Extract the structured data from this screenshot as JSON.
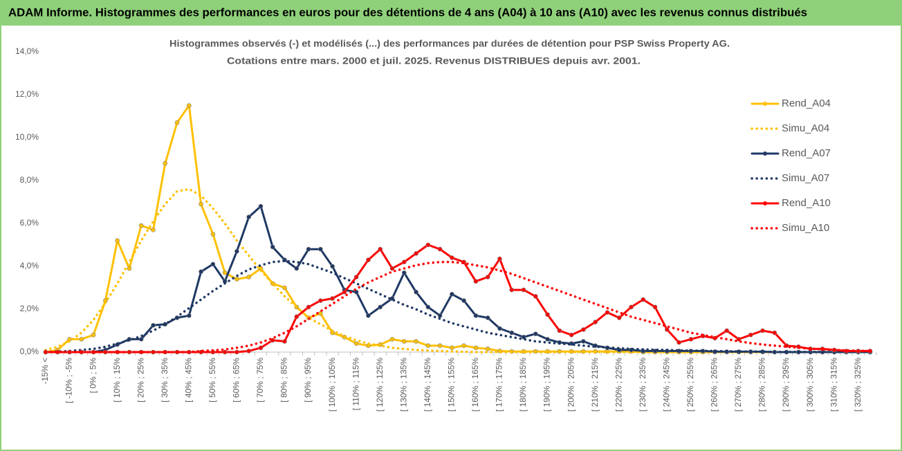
{
  "header": {
    "title": "ADAM Informe. Histogrammes des performances en euros pour des détentions de 4 ans (A04) à 10 ans (A10) avec les revenus connus distribués"
  },
  "chart_data": {
    "type": "line",
    "title": "Histogrammes observés (-) et modélisés (...) des performances par durées de détention pour PSP Swiss Property AG.",
    "subtitle": "Cotations entre mars. 2000 et juil. 2025. Revenus DISTRIBUES depuis avr. 2001.",
    "categories": [
      "-15% <",
      null,
      "[ -10% ; -5%",
      null,
      "[ 0% ; 5%",
      null,
      "[ 10% ; 15%",
      null,
      "[ 20% ; 25%",
      null,
      "[ 30% ; 35%",
      null,
      "[ 40% ; 45%",
      null,
      "[ 50% ; 55%",
      null,
      "[ 60% ; 65%",
      null,
      "[ 70% ; 75%",
      null,
      "[ 80% ; 85%",
      null,
      "[ 90% ; 95%",
      null,
      "[ 100% ; 105%",
      null,
      "[ 110% ; 115%",
      null,
      "[ 120% ; 125%",
      null,
      "[ 130% ; 135%",
      null,
      "[ 140% ; 145%",
      null,
      "[ 150% ; 155%",
      null,
      "[ 160% ; 165%",
      null,
      "[ 170% ; 175%",
      null,
      "[ 180% ; 185%",
      null,
      "[ 190% ; 195%",
      null,
      "[ 200% ; 205%",
      null,
      "[ 210% ; 215%",
      null,
      "[ 220% ; 225%",
      null,
      "[ 230% ; 235%",
      null,
      "[ 240% ; 245%",
      null,
      "[ 250% ; 255%",
      null,
      "[ 260% ; 265%",
      null,
      "[ 270% ; 275%",
      null,
      "[ 280% ; 285%",
      null,
      "[ 290% ; 295%",
      null,
      "[ 300% ; 305%",
      null,
      "[ 310% ; 315%",
      null,
      "[ 320% ; 325%",
      null
    ],
    "series": [
      {
        "name": "Rend_A04",
        "color": "#ffc000",
        "line_style": "solid",
        "markers": true,
        "values": [
          0,
          0.1,
          0.6,
          0.6,
          0.8,
          2.4,
          5.2,
          3.9,
          5.9,
          5.7,
          8.8,
          10.7,
          11.5,
          6.9,
          5.5,
          3.7,
          3.4,
          3.5,
          3.9,
          3.2,
          3.0,
          2.1,
          1.6,
          1.8,
          0.9,
          0.7,
          0.4,
          0.3,
          0.35,
          0.6,
          0.5,
          0.5,
          0.3,
          0.3,
          0.2,
          0.3,
          0.2,
          0.15,
          0.05,
          0.03,
          0.03,
          0.03,
          0.03,
          0.03,
          0.03,
          0.03,
          0.03,
          0.03,
          0.03,
          0.03,
          0,
          0,
          0,
          0,
          0,
          0,
          0,
          0,
          0,
          0,
          0,
          0,
          0,
          0,
          0,
          0,
          0,
          0,
          0,
          0
        ]
      },
      {
        "name": "Simu_A04",
        "color": "#ffc000",
        "line_style": "dotted",
        "markers": false,
        "values": [
          0.1,
          0.25,
          0.5,
          0.9,
          1.5,
          2.3,
          3.2,
          4.2,
          5.2,
          6.1,
          6.9,
          7.5,
          7.6,
          7.3,
          6.7,
          6.0,
          5.2,
          4.5,
          3.8,
          3.2,
          2.6,
          2.1,
          1.6,
          1.3,
          1.0,
          0.75,
          0.55,
          0.4,
          0.3,
          0.2,
          0.15,
          0.1,
          0.07,
          0.05,
          0.03,
          0.02,
          0,
          0,
          0,
          0,
          0,
          0,
          0,
          0,
          0,
          0,
          0,
          0,
          0,
          0,
          0,
          0,
          0,
          0,
          0,
          0,
          0,
          0,
          0,
          0,
          0,
          0,
          0,
          0,
          0,
          0,
          0,
          0,
          0,
          0
        ]
      },
      {
        "name": "Rend_A07",
        "color": "#1f3864",
        "line_style": "solid",
        "markers": true,
        "values": [
          0,
          0,
          0,
          0,
          0,
          0.1,
          0.35,
          0.6,
          0.6,
          1.25,
          1.3,
          1.6,
          1.7,
          3.75,
          4.1,
          3.3,
          4.7,
          6.3,
          6.8,
          4.9,
          4.3,
          3.9,
          4.8,
          4.8,
          4.0,
          2.9,
          2.8,
          1.7,
          2.1,
          2.5,
          3.7,
          2.8,
          2.1,
          1.7,
          2.7,
          2.4,
          1.7,
          1.6,
          1.1,
          0.9,
          0.7,
          0.85,
          0.6,
          0.45,
          0.4,
          0.5,
          0.3,
          0.2,
          0.1,
          0.1,
          0.05,
          0.05,
          0.05,
          0.05,
          0.05,
          0.05,
          0.02,
          0.02,
          0.02,
          0.02,
          0.02,
          0,
          0,
          0,
          0,
          0,
          0,
          0,
          0,
          0
        ]
      },
      {
        "name": "Simu_A07",
        "color": "#1f3864",
        "line_style": "dotted",
        "markers": false,
        "values": [
          0,
          0.02,
          0.05,
          0.1,
          0.15,
          0.25,
          0.4,
          0.55,
          0.75,
          1.0,
          1.3,
          1.65,
          2.05,
          2.45,
          2.85,
          3.2,
          3.55,
          3.85,
          4.05,
          4.2,
          4.25,
          4.2,
          4.1,
          3.9,
          3.7,
          3.45,
          3.2,
          2.95,
          2.7,
          2.45,
          2.2,
          2.0,
          1.75,
          1.55,
          1.35,
          1.2,
          1.05,
          0.9,
          0.8,
          0.7,
          0.6,
          0.5,
          0.45,
          0.4,
          0.35,
          0.3,
          0.25,
          0.22,
          0.18,
          0.15,
          0.13,
          0.11,
          0.1,
          0.08,
          0.07,
          0.06,
          0.05,
          0.04,
          0.03,
          0.03,
          0.02,
          0.01,
          0.01,
          0.01,
          0.01,
          0.01,
          0.01,
          0.01,
          0.01,
          0.01
        ]
      },
      {
        "name": "Rend_A10",
        "color": "#ff0000",
        "line_style": "solid",
        "markers": true,
        "values": [
          0,
          0,
          0,
          0,
          0,
          0,
          0,
          0,
          0,
          0,
          0,
          0,
          0,
          0,
          0,
          0,
          0,
          0.05,
          0.2,
          0.55,
          0.5,
          1.65,
          2.1,
          2.4,
          2.5,
          2.8,
          3.5,
          4.3,
          4.8,
          3.9,
          4.2,
          4.6,
          5.0,
          4.8,
          4.4,
          4.2,
          3.3,
          3.5,
          4.35,
          2.9,
          2.9,
          2.6,
          1.75,
          1.0,
          0.8,
          1.05,
          1.4,
          1.85,
          1.6,
          2.1,
          2.45,
          2.1,
          1.05,
          0.45,
          0.6,
          0.75,
          0.65,
          1.0,
          0.6,
          0.8,
          1.0,
          0.9,
          0.3,
          0.25,
          0.15,
          0.15,
          0.1,
          0.05,
          0.05,
          0.05
        ]
      },
      {
        "name": "Simu_A10",
        "color": "#ff0000",
        "line_style": "dotted",
        "markers": false,
        "values": [
          0,
          0,
          0,
          0,
          0,
          0,
          0,
          0,
          0,
          0,
          0,
          0,
          0,
          0.05,
          0.08,
          0.12,
          0.2,
          0.3,
          0.45,
          0.65,
          0.9,
          1.2,
          1.55,
          1.9,
          2.25,
          2.6,
          2.95,
          3.25,
          3.5,
          3.75,
          3.9,
          4.05,
          4.15,
          4.2,
          4.2,
          4.15,
          4.05,
          3.95,
          3.8,
          3.65,
          3.45,
          3.25,
          3.05,
          2.85,
          2.65,
          2.45,
          2.25,
          2.05,
          1.85,
          1.65,
          1.5,
          1.35,
          1.2,
          1.05,
          0.9,
          0.8,
          0.7,
          0.6,
          0.5,
          0.42,
          0.35,
          0.3,
          0.25,
          0.2,
          0.16,
          0.13,
          0.1,
          0.08,
          0.06,
          0.05
        ]
      }
    ],
    "ylim": [
      0,
      14
    ],
    "yticks": [
      {
        "value": 0,
        "label": "0,0%"
      },
      {
        "value": 2,
        "label": "2,0%"
      },
      {
        "value": 4,
        "label": "4,0%"
      },
      {
        "value": 6,
        "label": "6,0%"
      },
      {
        "value": 8,
        "label": "8,0%"
      },
      {
        "value": 10,
        "label": "10,0%"
      },
      {
        "value": 12,
        "label": "12,0%"
      },
      {
        "value": 14,
        "label": "14,0%"
      }
    ],
    "grid": false,
    "legend": "right"
  }
}
